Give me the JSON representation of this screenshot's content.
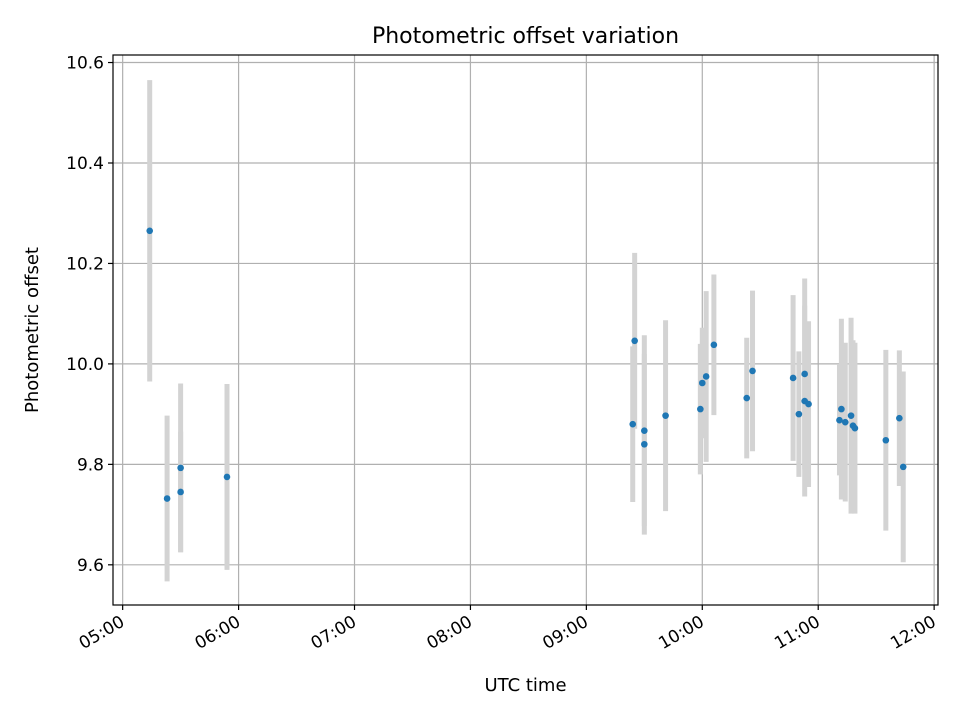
{
  "chart_data": {
    "type": "scatter",
    "title": "Photometric offset variation",
    "xlabel": "UTC time",
    "ylabel": "Photometric offset",
    "grid": true,
    "legend": "none",
    "x_axis_type": "time",
    "xlim": [
      "04:55",
      "12:02"
    ],
    "ylim": [
      9.52,
      10.615
    ],
    "x_ticks": [
      "05:00",
      "06:00",
      "07:00",
      "08:00",
      "09:00",
      "10:00",
      "11:00",
      "12:00"
    ],
    "y_ticks": [
      9.6,
      9.8,
      10.0,
      10.2,
      10.4,
      10.6
    ],
    "y_tick_labels": [
      "9.6",
      "9.8",
      "10.0",
      "10.2",
      "10.4",
      "10.6"
    ],
    "colors": {
      "point": "#1f77b4",
      "errorbar": "#d3d3d3",
      "grid": "#b0b0b0"
    },
    "points": [
      {
        "x": "05:14",
        "y": 10.265,
        "err": 0.3
      },
      {
        "x": "05:23",
        "y": 9.732,
        "err": 0.165
      },
      {
        "x": "05:30",
        "y": 9.745,
        "err": 0.12
      },
      {
        "x": "05:30",
        "y": 9.793,
        "err": 0.168
      },
      {
        "x": "05:54",
        "y": 9.775,
        "err": 0.185
      },
      {
        "x": "09:24",
        "y": 9.88,
        "err": 0.155
      },
      {
        "x": "09:25",
        "y": 10.046,
        "err": 0.175
      },
      {
        "x": "09:30",
        "y": 9.84,
        "err": 0.18
      },
      {
        "x": "09:30",
        "y": 9.867,
        "err": 0.19
      },
      {
        "x": "09:41",
        "y": 9.897,
        "err": 0.19
      },
      {
        "x": "09:59",
        "y": 9.91,
        "err": 0.13
      },
      {
        "x": "10:00",
        "y": 9.962,
        "err": 0.11
      },
      {
        "x": "10:02",
        "y": 9.975,
        "err": 0.17
      },
      {
        "x": "10:06",
        "y": 10.038,
        "err": 0.14
      },
      {
        "x": "10:23",
        "y": 9.932,
        "err": 0.12
      },
      {
        "x": "10:26",
        "y": 9.986,
        "err": 0.16
      },
      {
        "x": "10:47",
        "y": 9.972,
        "err": 0.165
      },
      {
        "x": "10:50",
        "y": 9.9,
        "err": 0.125
      },
      {
        "x": "10:53",
        "y": 9.98,
        "err": 0.19
      },
      {
        "x": "10:53",
        "y": 9.926,
        "err": 0.19
      },
      {
        "x": "10:55",
        "y": 9.92,
        "err": 0.165
      },
      {
        "x": "11:11",
        "y": 9.888,
        "err": 0.11
      },
      {
        "x": "11:12",
        "y": 9.91,
        "err": 0.18
      },
      {
        "x": "11:14",
        "y": 9.884,
        "err": 0.158
      },
      {
        "x": "11:17",
        "y": 9.897,
        "err": 0.195
      },
      {
        "x": "11:18",
        "y": 9.877,
        "err": 0.17
      },
      {
        "x": "11:19",
        "y": 9.872,
        "err": 0.17
      },
      {
        "x": "11:35",
        "y": 9.848,
        "err": 0.18
      },
      {
        "x": "11:42",
        "y": 9.892,
        "err": 0.135
      },
      {
        "x": "11:44",
        "y": 9.795,
        "err": 0.19
      }
    ]
  }
}
